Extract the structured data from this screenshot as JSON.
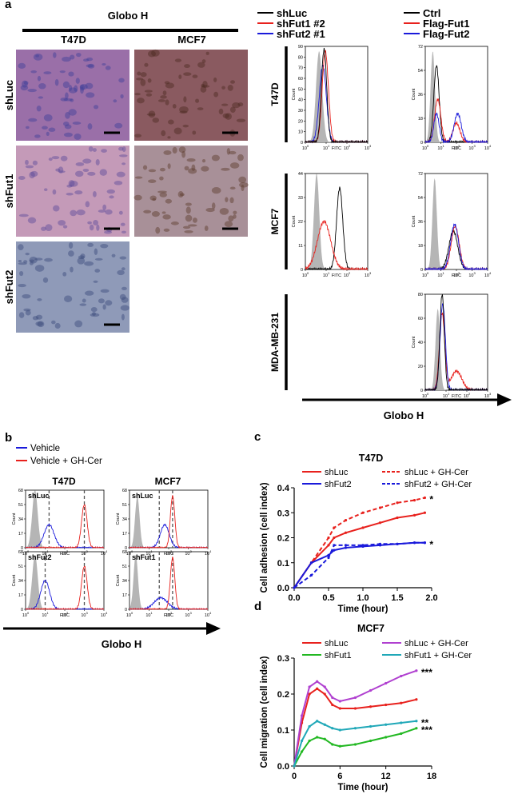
{
  "panel_a": {
    "label": "a",
    "title": "Globo H",
    "columns": [
      "T47D",
      "MCF7"
    ],
    "rows": [
      "shLuc",
      "shFut1",
      "shFut2"
    ],
    "legends": [
      [
        {
          "name": "shLuc",
          "color": "#000000"
        },
        {
          "name": "shFut1 #2",
          "color": "#e8211d"
        },
        {
          "name": "shFut2 #1",
          "color": "#1a1adb"
        }
      ],
      [
        {
          "name": "Ctrl",
          "color": "#000000"
        },
        {
          "name": "Flag-Fut1",
          "color": "#e8211d"
        },
        {
          "name": "Flag-Fut2",
          "color": "#1a1adb"
        }
      ]
    ],
    "cell_lines": [
      "T47D",
      "MCF7",
      "MDA-MB-231"
    ],
    "histograms": [
      {
        "yticks": [
          0,
          10,
          20,
          30,
          40,
          50,
          60,
          70,
          80,
          90
        ],
        "xticks": [
          0,
          1,
          2,
          3
        ]
      },
      {
        "yticks": [
          0,
          18,
          36,
          54,
          72
        ],
        "xticks": [
          0,
          1,
          2,
          3,
          4
        ]
      },
      {
        "yticks": [
          0,
          11,
          22,
          33,
          44
        ],
        "xticks": [
          0,
          1,
          2,
          3
        ]
      },
      {
        "yticks": [
          0,
          18,
          36,
          54,
          72
        ],
        "xticks": [
          0,
          1,
          2,
          3,
          4
        ]
      },
      {
        "yticks": [
          0,
          20,
          40,
          60,
          80
        ],
        "xticks": [
          0,
          1,
          2,
          3
        ]
      }
    ],
    "count_label": "Count",
    "x_label": "FITC",
    "log_base": "10",
    "axis_label": "Globo H"
  },
  "panel_b": {
    "label": "b",
    "legend": [
      {
        "name": "Vehicle",
        "color": "#1a1adb"
      },
      {
        "name": "Vehicle + GH-Cer",
        "color": "#e8211d"
      }
    ],
    "columns": [
      "T47D",
      "MCF7"
    ],
    "histograms": [
      {
        "title": "shLuc",
        "yticks": [
          0,
          17,
          34,
          51,
          68
        ],
        "xticks": [
          0,
          1,
          2,
          3,
          4
        ]
      },
      {
        "title": "shLuc",
        "yticks": [
          0,
          17,
          34,
          51,
          68
        ],
        "xticks": [
          0,
          1,
          2,
          3,
          4
        ]
      },
      {
        "title": "shFut2",
        "yticks": [
          0,
          17,
          34,
          51,
          68
        ],
        "xticks": [
          0,
          1,
          2,
          3,
          4
        ]
      },
      {
        "title": "shFut1",
        "yticks": [
          0,
          17,
          34,
          51,
          68
        ],
        "xticks": [
          0,
          1,
          2,
          3,
          4
        ]
      }
    ],
    "count_label": "Count",
    "x_label": "FITC",
    "log_base": "10",
    "axis_label": "Globo H"
  },
  "chart_data": [
    {
      "type": "line",
      "label": "c",
      "title": "T47D",
      "x_label": "Time (hour)",
      "y_label": "Cell adhesion (cell index)",
      "xlim": [
        0,
        2
      ],
      "xticks": [
        {
          "value": 0,
          "label": "0.0"
        },
        {
          "value": 0.5,
          "label": "0.5"
        },
        {
          "value": 1,
          "label": "1.0"
        },
        {
          "value": 1.5,
          "label": "1.5"
        },
        {
          "value": 2,
          "label": "2.0"
        }
      ],
      "ylim": [
        0,
        0.4
      ],
      "yticks": [
        {
          "value": 0,
          "label": "0.0"
        },
        0.1,
        0.2,
        0.3,
        0.4
      ],
      "x": [
        0,
        0.25,
        0.5,
        0.58,
        0.75,
        1,
        1.25,
        1.5,
        1.75,
        1.9
      ],
      "series": [
        {
          "name": "shLuc",
          "color": "#e8211d",
          "dashed": false,
          "values": [
            0,
            0.1,
            0.17,
            0.2,
            0.22,
            0.24,
            0.26,
            0.28,
            0.29,
            0.3
          ]
        },
        {
          "name": "shLuc + GH-Cer",
          "color": "#e8211d",
          "dashed": true,
          "values": [
            0,
            0.1,
            0.2,
            0.24,
            0.27,
            0.3,
            0.32,
            0.34,
            0.35,
            0.36
          ]
        },
        {
          "name": "shFut2",
          "color": "#1a1adb",
          "dashed": false,
          "values": [
            0,
            0.1,
            0.13,
            0.15,
            0.16,
            0.165,
            0.17,
            0.175,
            0.18,
            0.18
          ]
        },
        {
          "name": "shFut2 + GH-Cer",
          "color": "#1a1adb",
          "dashed": true,
          "values": [
            0,
            0.05,
            0.12,
            0.17,
            0.17,
            0.17,
            0.175,
            0.175,
            0.18,
            0.18
          ]
        }
      ],
      "annotations": [
        "*",
        "*"
      ]
    },
    {
      "type": "line",
      "label": "d",
      "title": "MCF7",
      "x_label": "Time (hour)",
      "y_label": "Cell migration (cell index)",
      "xlim": [
        0,
        18
      ],
      "xticks": [
        0,
        6,
        12,
        18
      ],
      "ylim": [
        0,
        0.3
      ],
      "yticks": [
        {
          "value": 0,
          "label": "0.0"
        },
        0.1,
        0.2,
        0.3
      ],
      "x": [
        0,
        1,
        2,
        3,
        4,
        5,
        6,
        8,
        10,
        12,
        14,
        16
      ],
      "series": [
        {
          "name": "shLuc",
          "color": "#e8211d",
          "dashed": false,
          "values": [
            0,
            0.12,
            0.2,
            0.215,
            0.2,
            0.17,
            0.16,
            0.16,
            0.165,
            0.17,
            0.175,
            0.185
          ]
        },
        {
          "name": "shLuc + GH-Cer",
          "color": "#b040d0",
          "dashed": false,
          "values": [
            0,
            0.14,
            0.22,
            0.235,
            0.22,
            0.19,
            0.18,
            0.19,
            0.21,
            0.23,
            0.25,
            0.265
          ]
        },
        {
          "name": "shFut1",
          "color": "#22b822",
          "dashed": false,
          "values": [
            0,
            0.04,
            0.07,
            0.08,
            0.075,
            0.06,
            0.055,
            0.06,
            0.07,
            0.08,
            0.09,
            0.105
          ]
        },
        {
          "name": "shFut1 + GH-Cer",
          "color": "#20a8b8",
          "dashed": false,
          "values": [
            0,
            0.07,
            0.11,
            0.125,
            0.115,
            0.105,
            0.1,
            0.105,
            0.11,
            0.115,
            0.12,
            0.125
          ]
        }
      ],
      "annotations": [
        "***",
        "**",
        "***"
      ]
    }
  ]
}
